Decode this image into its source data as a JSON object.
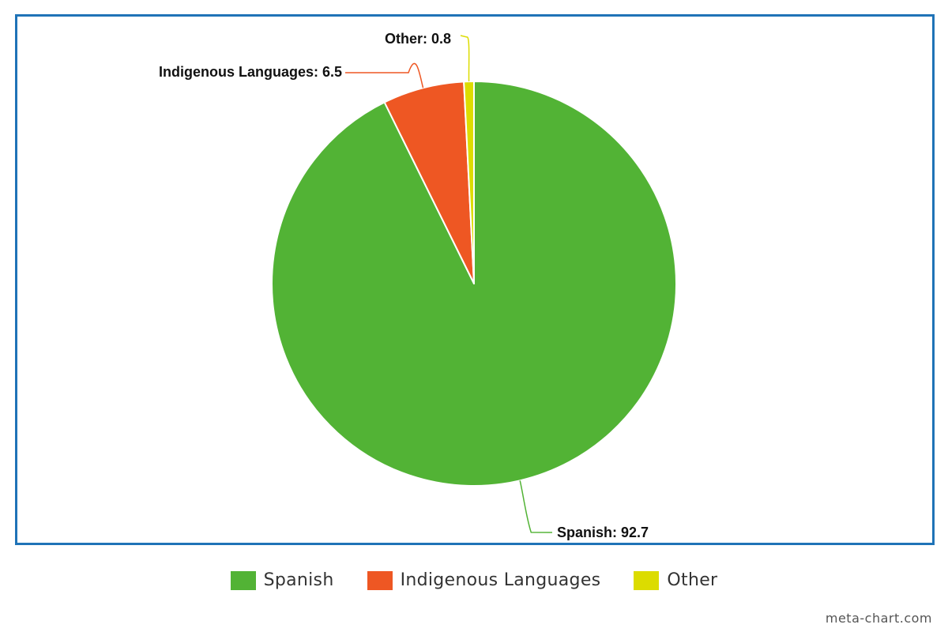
{
  "chart_data": {
    "type": "pie",
    "categories": [
      "Spanish",
      "Indigenous Languages",
      "Other"
    ],
    "values": [
      92.7,
      6.5,
      0.8
    ],
    "colors": [
      "#52b335",
      "#ee5723",
      "#dcdc00"
    ],
    "data_labels": [
      "Spanish: 92.7",
      "Indigenous Languages: 6.5",
      "Other: 0.8"
    ],
    "legend": {
      "placement": "bottom",
      "items": [
        "Spanish",
        "Indigenous Languages",
        "Other"
      ]
    },
    "title": ""
  },
  "frame_color": "#1f73b7",
  "credit": "meta-chart.com"
}
